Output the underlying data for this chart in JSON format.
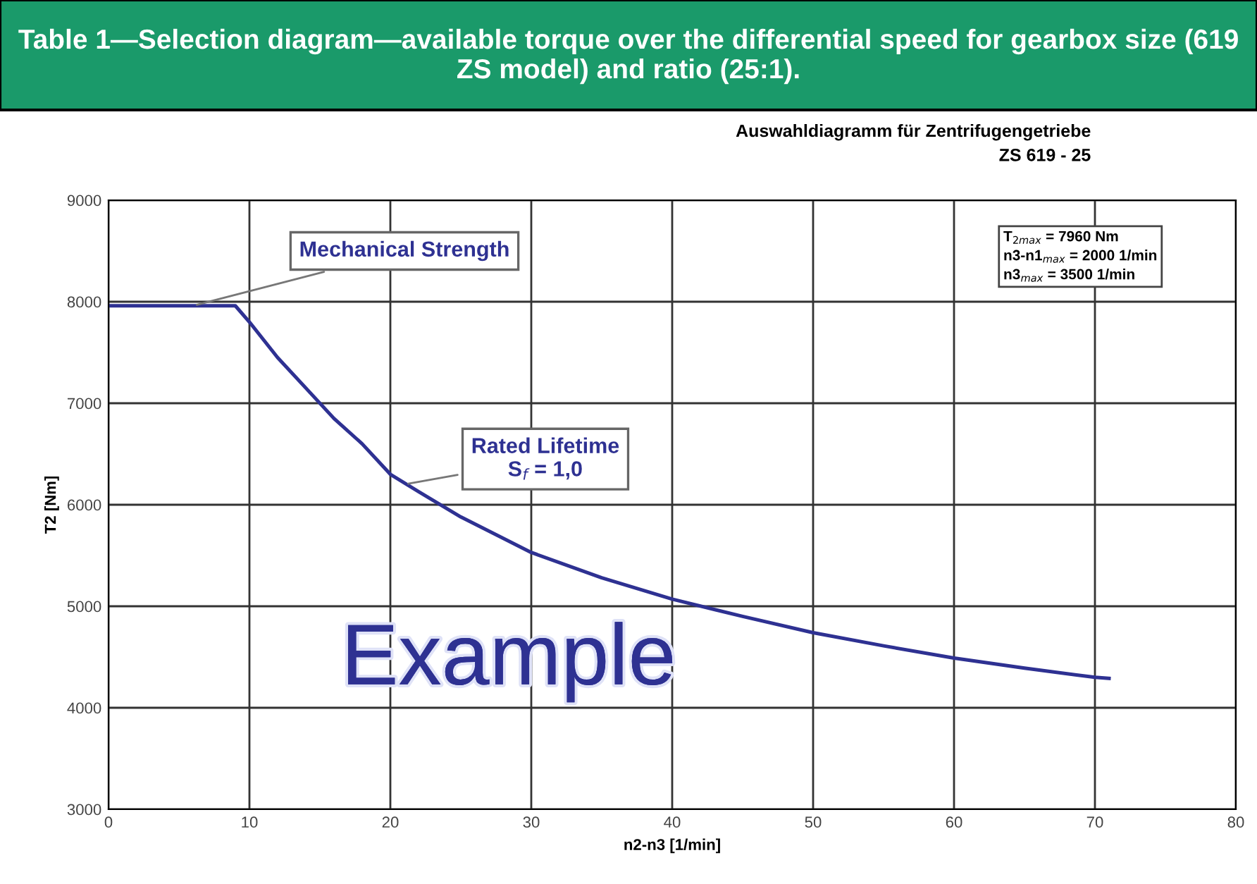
{
  "chart_data": {
    "type": "line",
    "title": "Table 1—Selection diagram—available torque over the differential speed for gearbox size (619 ZS model) and ratio (25:1).",
    "subtitle": "Auswahldiagramm für Zentrifugengetriebe\nZS 619 - 25",
    "xlabel": "n2-n3 [1/min]",
    "ylabel": "T2 [Nm]",
    "series": [
      {
        "color": "#2e3192",
        "x": [
          0,
          9,
          10,
          12,
          14,
          16,
          18,
          20,
          22,
          25,
          30,
          35,
          40,
          45,
          50,
          55,
          60,
          65,
          70,
          71
        ],
        "values": [
          7960,
          7960,
          7800,
          7450,
          7150,
          6850,
          6600,
          6300,
          6130,
          5880,
          5530,
          5280,
          5070,
          4900,
          4740,
          4610,
          4490,
          4390,
          4300,
          4290
        ]
      }
    ],
    "xlim": [
      0,
      80
    ],
    "xticks": [
      0,
      10,
      20,
      30,
      40,
      50,
      60,
      70,
      80
    ],
    "ylim": [
      3000,
      9000
    ],
    "yticks": [
      3000,
      4000,
      5000,
      6000,
      7000,
      8000,
      9000
    ],
    "grid": true,
    "marker": "none",
    "line_style": "solid",
    "annotations": [
      {
        "text": "Mechanical Strength",
        "x": 6,
        "y": 7960
      },
      {
        "text": "Rated Lifetime\nS$_{f}$ = 1,0",
        "x": 21,
        "y": 6200
      },
      "T$_{2max}$ = 7960 Nm\nn3-n1$_{max}$ = 2000 1/min\nn3$_{max}$ = 3500 1/min",
      "Example"
    ]
  }
}
